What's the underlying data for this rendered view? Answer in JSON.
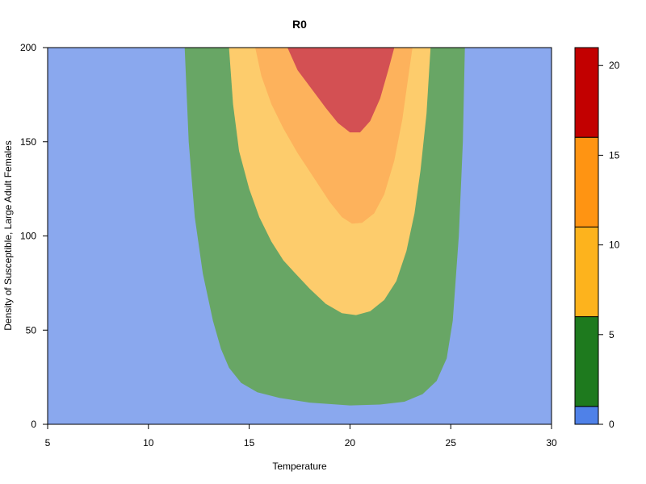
{
  "chart_data": {
    "type": "heatmap",
    "title": "R0",
    "xlabel": "Temperature",
    "ylabel": "Density of Susceptible, Large Adult Females",
    "xlim": [
      5,
      30
    ],
    "ylim": [
      0,
      200
    ],
    "x_ticks": [
      "5",
      "10",
      "15",
      "20",
      "25",
      "30"
    ],
    "y_ticks": [
      "0",
      "50",
      "100",
      "150",
      "200"
    ],
    "colorbar": {
      "range": [
        0,
        21
      ],
      "ticks": [
        "0",
        "5",
        "10",
        "15",
        "20"
      ],
      "levels": [
        {
          "from": 0,
          "to": 1,
          "color": "#4F81E8"
        },
        {
          "from": 1,
          "to": 6,
          "color": "#1E7A1E"
        },
        {
          "from": 6,
          "to": 11,
          "color": "#FDB31D"
        },
        {
          "from": 11,
          "to": 16,
          "color": "#FF9412"
        },
        {
          "from": 16,
          "to": 21,
          "color": "#C20000"
        }
      ]
    },
    "region_colors": [
      "#8AA8EE",
      "#68A665",
      "#FDCC6C",
      "#FDB25C",
      "#D35053"
    ],
    "contours": [
      {
        "level": 1,
        "points": [
          [
            11.8,
            200
          ],
          [
            12.0,
            150
          ],
          [
            12.3,
            110
          ],
          [
            12.7,
            80
          ],
          [
            13.2,
            55
          ],
          [
            13.6,
            40
          ],
          [
            14.0,
            30
          ],
          [
            14.6,
            22
          ],
          [
            15.4,
            17
          ],
          [
            16.5,
            14
          ],
          [
            18.0,
            11.5
          ],
          [
            20.0,
            10
          ],
          [
            21.5,
            10.5
          ],
          [
            22.7,
            12
          ],
          [
            23.6,
            16
          ],
          [
            24.3,
            23
          ],
          [
            24.8,
            35
          ],
          [
            25.1,
            55
          ],
          [
            25.4,
            100
          ],
          [
            25.6,
            150
          ],
          [
            25.7,
            200
          ]
        ]
      },
      {
        "level": 6,
        "points": [
          [
            14.0,
            200
          ],
          [
            14.2,
            170
          ],
          [
            14.5,
            145
          ],
          [
            15.0,
            125
          ],
          [
            15.5,
            110
          ],
          [
            16.1,
            97
          ],
          [
            16.7,
            87
          ],
          [
            17.3,
            80
          ],
          [
            18.0,
            72
          ],
          [
            18.8,
            64
          ],
          [
            19.6,
            59
          ],
          [
            20.3,
            58
          ],
          [
            21.0,
            60
          ],
          [
            21.7,
            66
          ],
          [
            22.3,
            76
          ],
          [
            22.8,
            92
          ],
          [
            23.2,
            112
          ],
          [
            23.5,
            135
          ],
          [
            23.8,
            165
          ],
          [
            24.0,
            200
          ]
        ]
      },
      {
        "level": 11,
        "points": [
          [
            15.3,
            200
          ],
          [
            15.6,
            185
          ],
          [
            16.1,
            170
          ],
          [
            16.7,
            157
          ],
          [
            17.4,
            144
          ],
          [
            18.2,
            131
          ],
          [
            19.0,
            118
          ],
          [
            19.6,
            110
          ],
          [
            20.1,
            106.5
          ],
          [
            20.6,
            107
          ],
          [
            21.2,
            112
          ],
          [
            21.7,
            122
          ],
          [
            22.2,
            140
          ],
          [
            22.6,
            162
          ],
          [
            22.9,
            185
          ],
          [
            23.1,
            200
          ]
        ]
      },
      {
        "level": 16,
        "points": [
          [
            16.9,
            200
          ],
          [
            17.4,
            188
          ],
          [
            18.1,
            178
          ],
          [
            18.8,
            168
          ],
          [
            19.4,
            160
          ],
          [
            20.0,
            155
          ],
          [
            20.5,
            155
          ],
          [
            21.0,
            161
          ],
          [
            21.5,
            173
          ],
          [
            21.9,
            188
          ],
          [
            22.2,
            200
          ]
        ]
      }
    ]
  }
}
